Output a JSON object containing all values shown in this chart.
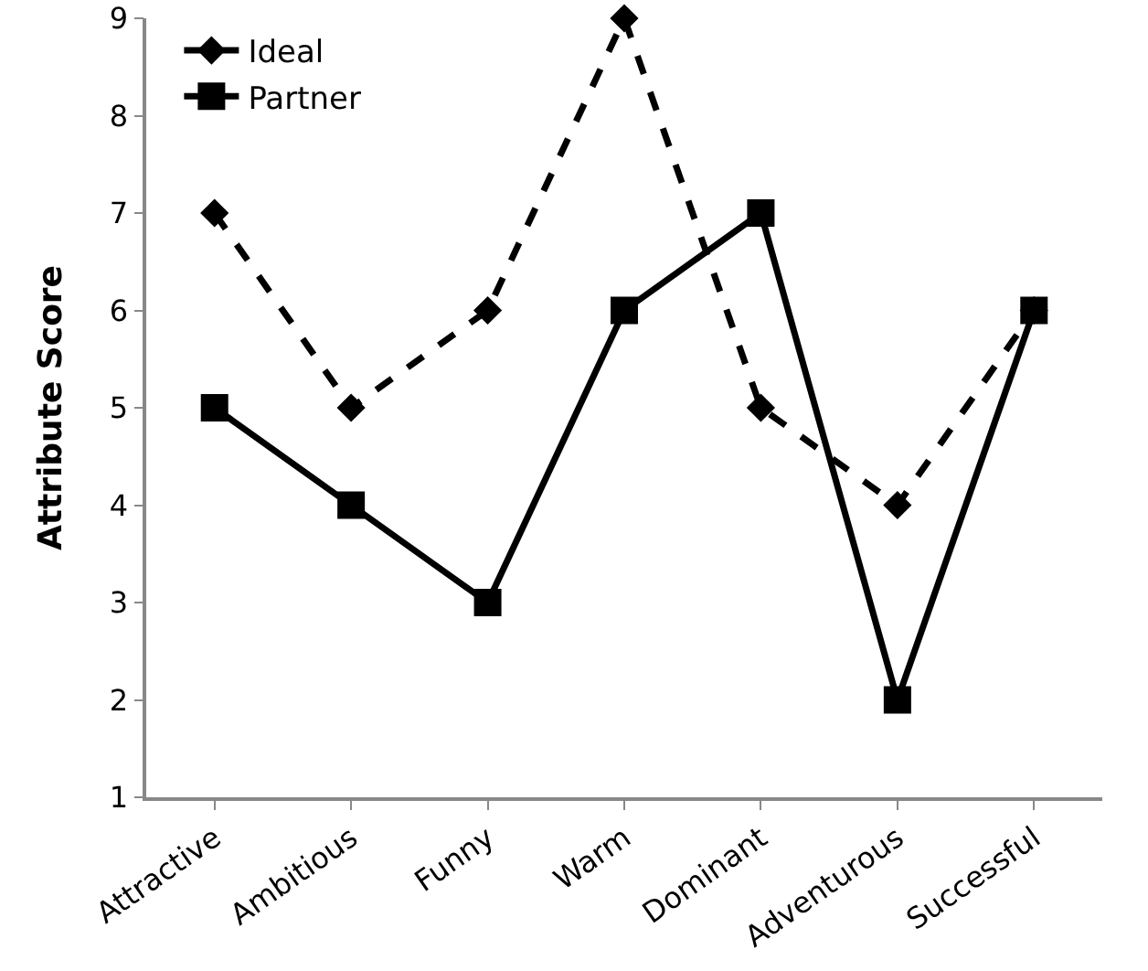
{
  "chart_data": {
    "type": "line",
    "ylabel": "Attribute Score",
    "categories": [
      "Attractive",
      "Ambitious",
      "Funny",
      "Warm",
      "Dominant",
      "Adventurous",
      "Successful"
    ],
    "series": [
      {
        "name": "Ideal",
        "color": "#000000",
        "values": [
          7,
          5,
          6,
          9,
          5,
          4,
          6
        ],
        "marker": "diamond",
        "line_style": "dashed"
      },
      {
        "name": "Partner",
        "color": "#000000",
        "values": [
          5,
          4,
          3,
          6,
          7,
          2,
          6
        ],
        "marker": "square",
        "line_style": "solid"
      }
    ],
    "ylim": [
      1,
      9
    ],
    "yticks": [
      1,
      2,
      3,
      4,
      5,
      6,
      7,
      8,
      9
    ],
    "grid": false,
    "legend": "top left"
  }
}
